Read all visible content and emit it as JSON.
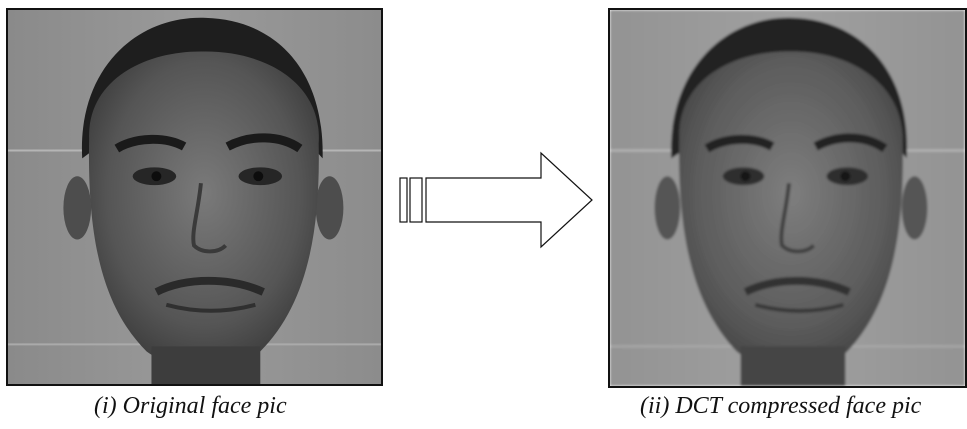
{
  "panels": [
    {
      "caption": "(i) Original face pic",
      "image": "grayscale-face-photo-original"
    },
    {
      "caption": "(ii) DCT compressed face pic",
      "image": "grayscale-face-photo-compressed"
    }
  ],
  "arrow": {
    "direction": "right",
    "icon": "transform-arrow-icon"
  },
  "colors": {
    "stroke": "#111111",
    "background": "#ffffff"
  }
}
